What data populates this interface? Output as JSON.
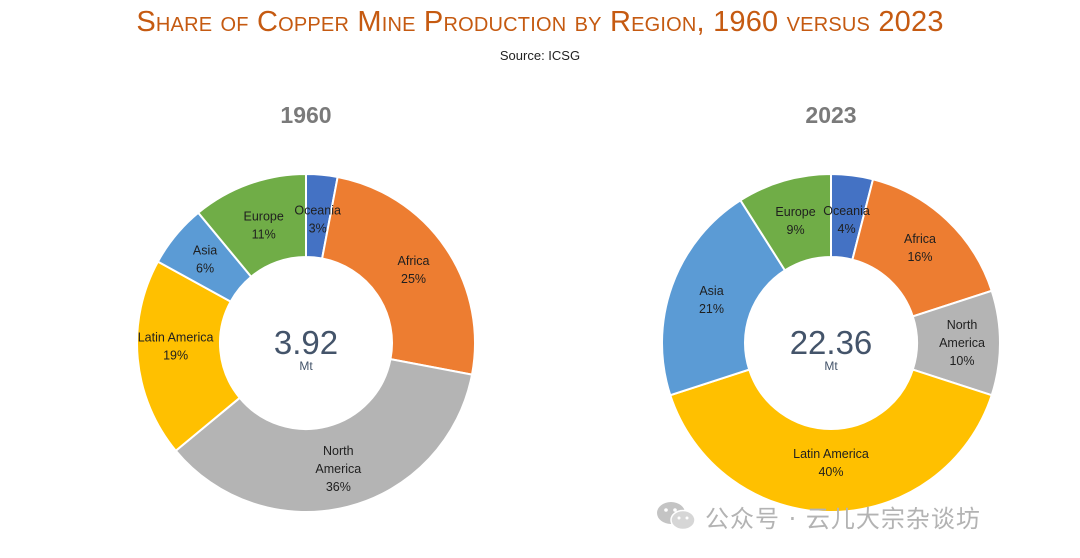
{
  "header": {
    "title": "Share of Copper Mine Production by Region, 1960 versus 2023",
    "source": "Source: ICSG"
  },
  "watermark": {
    "text": "公众号 · 云儿大宗杂谈坊",
    "icon": "wechat-logo-icon"
  },
  "chart_data": [
    {
      "type": "pie",
      "variant": "donut",
      "title": "1960",
      "total_label": "3.92",
      "unit": "Mt",
      "slices": [
        {
          "label": "Oceania",
          "value": 3,
          "pct_label": "3%",
          "color": "#4472c4"
        },
        {
          "label": "Africa",
          "value": 25,
          "pct_label": "25%",
          "color": "#ed7d31"
        },
        {
          "label": "North America",
          "value": 36,
          "pct_label": "36%",
          "color": "#b4b4b4"
        },
        {
          "label": "Latin America",
          "value": 19,
          "pct_label": "19%",
          "color": "#ffc000"
        },
        {
          "label": "Asia",
          "value": 6,
          "pct_label": "6%",
          "color": "#5b9bd5"
        },
        {
          "label": "Europe",
          "value": 11,
          "pct_label": "11%",
          "color": "#70ad47"
        }
      ]
    },
    {
      "type": "pie",
      "variant": "donut",
      "title": "2023",
      "total_label": "22.36",
      "unit": "Mt",
      "slices": [
        {
          "label": "Oceania",
          "value": 4,
          "pct_label": "4%",
          "color": "#4472c4"
        },
        {
          "label": "Africa",
          "value": 16,
          "pct_label": "16%",
          "color": "#ed7d31"
        },
        {
          "label": "North America",
          "value": 10,
          "pct_label": "10%",
          "color": "#b4b4b4"
        },
        {
          "label": "Latin America",
          "value": 40,
          "pct_label": "40%",
          "color": "#ffc000"
        },
        {
          "label": "Asia",
          "value": 21,
          "pct_label": "21%",
          "color": "#5b9bd5"
        },
        {
          "label": "Europe",
          "value": 9,
          "pct_label": "9%",
          "color": "#70ad47"
        }
      ]
    }
  ]
}
